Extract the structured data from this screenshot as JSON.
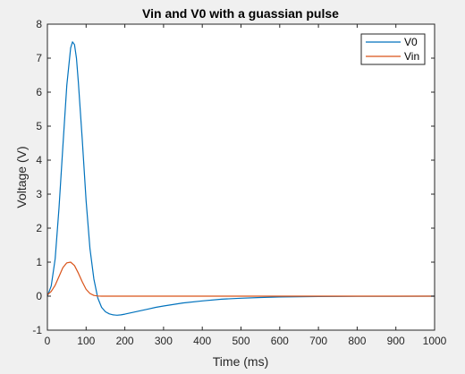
{
  "chart_data": {
    "type": "line",
    "title": "Vin and V0 with a guassian pulse",
    "xlabel": "Time (ms)",
    "ylabel": "Voltage (V)",
    "xlim": [
      0,
      1000
    ],
    "ylim": [
      -1,
      8
    ],
    "xticks": [
      0,
      100,
      200,
      300,
      400,
      500,
      600,
      700,
      800,
      900,
      1000
    ],
    "yticks": [
      -1,
      0,
      1,
      2,
      3,
      4,
      5,
      6,
      7,
      8
    ],
    "grid": false,
    "legend_position": "top-right",
    "series": [
      {
        "name": "V0",
        "color": "#0072bd",
        "x": [
          0,
          10,
          20,
          30,
          40,
          50,
          60,
          65,
          70,
          75,
          80,
          90,
          100,
          110,
          120,
          130,
          140,
          150,
          160,
          170,
          180,
          190,
          200,
          220,
          240,
          260,
          280,
          300,
          350,
          400,
          450,
          500,
          550,
          600,
          650,
          700,
          800,
          900,
          1000
        ],
        "y": [
          0.0,
          0.3,
          1.1,
          2.6,
          4.4,
          6.2,
          7.3,
          7.48,
          7.4,
          7.0,
          6.3,
          4.6,
          2.8,
          1.4,
          0.5,
          -0.05,
          -0.33,
          -0.46,
          -0.52,
          -0.55,
          -0.56,
          -0.55,
          -0.53,
          -0.48,
          -0.43,
          -0.38,
          -0.33,
          -0.29,
          -0.2,
          -0.14,
          -0.09,
          -0.06,
          -0.04,
          -0.025,
          -0.015,
          -0.01,
          -0.005,
          -0.002,
          0.0
        ]
      },
      {
        "name": "Vin",
        "color": "#d95319",
        "x": [
          0,
          10,
          20,
          30,
          40,
          50,
          60,
          70,
          80,
          90,
          100,
          110,
          120,
          130,
          140,
          160,
          200,
          300,
          400,
          500,
          600,
          700,
          800,
          900,
          1000
        ],
        "y": [
          0.04,
          0.14,
          0.32,
          0.58,
          0.84,
          0.98,
          1.0,
          0.9,
          0.68,
          0.42,
          0.2,
          0.08,
          0.02,
          0.005,
          0.0,
          0.0,
          0.0,
          0.0,
          0.0,
          0.0,
          0.0,
          0.0,
          0.0,
          0.0,
          0.0
        ]
      }
    ]
  }
}
